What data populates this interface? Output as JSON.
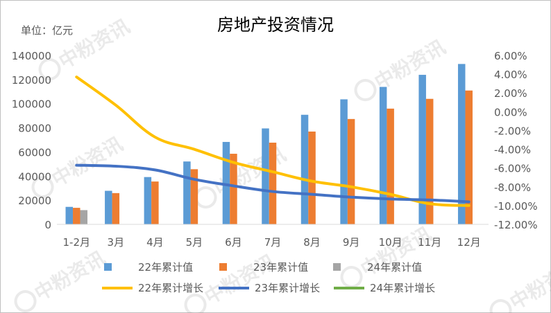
{
  "watermark": "中粉资讯",
  "chart_data": {
    "type": "bar",
    "title": "房地产投资情况",
    "unit_label": "单位：亿元",
    "categories": [
      "1-2月",
      "3月",
      "4月",
      "5月",
      "6月",
      "7月",
      "8月",
      "9月",
      "10月",
      "11月",
      "12月"
    ],
    "y_left": {
      "ylim": [
        0,
        140000
      ],
      "ticks": [
        "0",
        "20000",
        "40000",
        "60000",
        "80000",
        "100000",
        "120000",
        "140000"
      ]
    },
    "y_right": {
      "ylim": [
        -12,
        6
      ],
      "ticks": [
        "-12.00%",
        "-10.00%",
        "-8.00%",
        "-6.00%",
        "-4.00%",
        "-2.00%",
        "0.00%",
        "2.00%",
        "4.00%",
        "6.00%"
      ]
    },
    "grid": false,
    "legend_position": "bottom",
    "bar_series": [
      {
        "name": "22年累计值",
        "color": "#5b9bd5",
        "values": [
          14500,
          27800,
          39200,
          52100,
          68300,
          79500,
          90800,
          103600,
          113900,
          123900,
          132900
        ]
      },
      {
        "name": "23年累计值",
        "color": "#ed7d31",
        "values": [
          13700,
          25900,
          35500,
          45700,
          58500,
          67700,
          76900,
          87300,
          95900,
          104000,
          110900
        ]
      },
      {
        "name": "24年累计值",
        "color": "#a5a5a5",
        "values": [
          11800,
          null,
          null,
          null,
          null,
          null,
          null,
          null,
          null,
          null,
          null
        ]
      }
    ],
    "line_series": [
      {
        "name": "22年累计增长",
        "color": "#ffc000",
        "values": [
          3.7,
          0.7,
          -2.7,
          -4.0,
          -5.4,
          -6.4,
          -7.4,
          -8.0,
          -8.8,
          -9.8,
          -10.0
        ]
      },
      {
        "name": "23年累计增长",
        "color": "#4472c4",
        "values": [
          -5.7,
          -5.8,
          -6.2,
          -7.2,
          -7.9,
          -8.5,
          -8.8,
          -9.1,
          -9.3,
          -9.4,
          -9.6
        ]
      },
      {
        "name": "24年累计增长",
        "color": "#70ad47",
        "values": [
          null,
          null,
          null,
          null,
          null,
          null,
          null,
          null,
          null,
          null,
          null
        ]
      }
    ]
  }
}
